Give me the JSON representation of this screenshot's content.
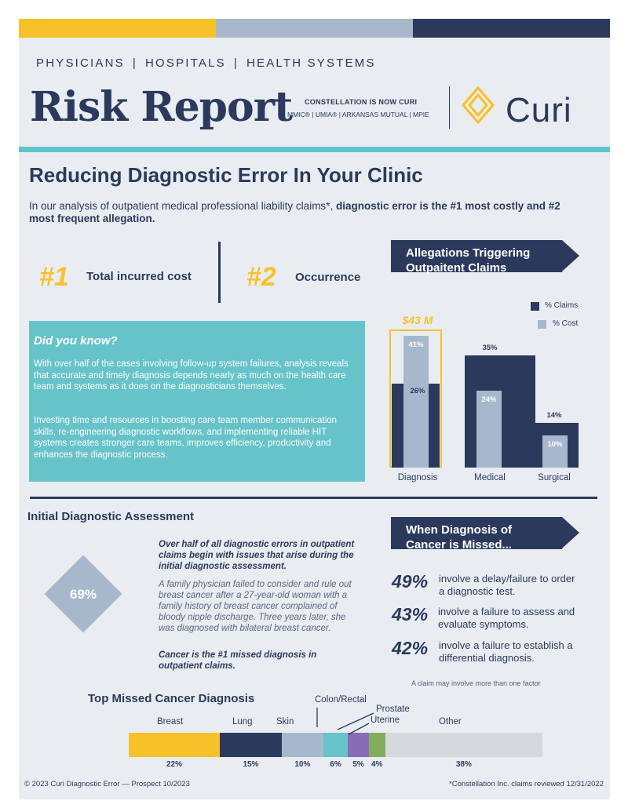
{
  "colors": {
    "yellow": "#f7c12a",
    "gray_blue": "#a8b8cc",
    "navy": "#2b3a5c",
    "teal": "#66c3c9",
    "purple": "#8a6bb5",
    "green": "#82ad5a",
    "light_gray": "#d6d9dc"
  },
  "header": {
    "kicker": [
      "PHYSICIANS",
      "HOSPITALS",
      "HEALTH SYSTEMS"
    ],
    "kicker_sep": "|",
    "title": "Risk Report",
    "constellation_line1": "CONSTELLATION IS NOW CURI",
    "constellation_line2": "MMIC® | UMIA® | ARKANSAS MUTUAL | MPIE",
    "logo_text": "Curi",
    "logo_icon": "curi-diamond-logo-icon"
  },
  "main": {
    "heading": "Reducing Diagnostic Error In Your Clinic",
    "intro_plain": "In our analysis of outpatient medical professional liability claims*, ",
    "intro_bold": "diagnostic error is the #1 most costly and #2 most frequent allegation."
  },
  "stats": {
    "first_num": "#1",
    "first_label": "Total incurred cost",
    "second_num": "#2",
    "second_label": "Occurrence"
  },
  "did_you_know": {
    "title": "Did you know?",
    "p1": "With over half of the cases involving follow-up system failures, analysis reveals that accurate and timely diagnosis depends nearly as much on the health care team and systems as it does on the diagnosticians themselves.",
    "p2": "Investing time and resources in boosting care team member communication skills, re-engineering diagnostic workflows, and implementing reliable HIT systems creates stronger care teams, improves efficiency, productivity and enhances the diagnostic process."
  },
  "allegations_banner": {
    "line1": "Allegations Triggering",
    "line2": "Outpaitent Claims"
  },
  "chart_data": {
    "type": "bar",
    "title": "Allegations Triggering Outpaitent Claims",
    "categories": [
      "Diagnosis",
      "Medical",
      "Surgical"
    ],
    "series": [
      {
        "name": "% Claims",
        "values": [
          26,
          35,
          14
        ],
        "labels": [
          "26%",
          "35%",
          "14%"
        ]
      },
      {
        "name": "% Cost",
        "values": [
          41,
          24,
          10
        ],
        "labels": [
          "41%",
          "24%",
          "10%"
        ]
      }
    ],
    "annotation": "$43 M",
    "ylim": [
      0,
      45
    ],
    "legend": "top-right",
    "grid": false
  },
  "initial": {
    "heading": "Initial Diagnostic Assessment",
    "diamond_value": "69%",
    "bold_intro": "Over half of all diagnostic errors in outpatient claims begin with issues that arise during the initial diagnostic assessment.",
    "case": "A family physician failed to consider and rule out breast cancer after a 27-year-old woman with a family history of breast cancer complained of bloody nipple discharge. Three years later, she was diagnosed with bilateral breast cancer.",
    "closing": "Cancer is the #1 missed diagnosis in outpatient claims."
  },
  "missed": {
    "banner_line1": "When Diagnosis of",
    "banner_line2": "Cancer is Missed...",
    "items": [
      {
        "pct": "49%",
        "text": "involve a delay/failure to order a diagnostic test."
      },
      {
        "pct": "43%",
        "text": "involve a failure to assess and evaluate symptoms."
      },
      {
        "pct": "42%",
        "text": "involve a failure to establish a differential diagnosis."
      }
    ],
    "note": "A claim may involve more than one factor"
  },
  "top_missed": {
    "heading": "Top Missed Cancer Diagnosis",
    "segments": [
      {
        "label": "Breast",
        "pct": "22%",
        "value": 22
      },
      {
        "label": "Lung",
        "pct": "15%",
        "value": 15
      },
      {
        "label": "Skin",
        "pct": "10%",
        "value": 10
      },
      {
        "label": "Colon/Rectal",
        "pct": "6%",
        "value": 6
      },
      {
        "label": "Prostate",
        "pct": "5%",
        "value": 5
      },
      {
        "label": "Uterine",
        "pct": "4%",
        "value": 4
      },
      {
        "label": "Other",
        "pct": "38%",
        "value": 38
      }
    ]
  },
  "footer": {
    "left": "© 2023 Curi   Diagnostic Error — Prospect 10/2023",
    "right": "*Constellation Inc. claims reviewed 12/31/2022"
  }
}
